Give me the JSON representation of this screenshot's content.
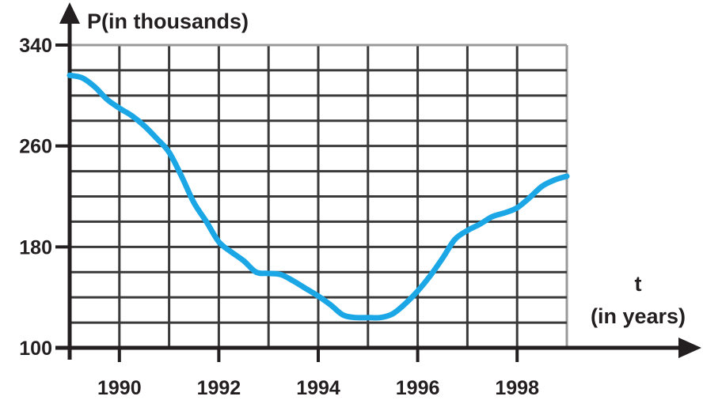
{
  "chart_data": {
    "type": "line",
    "title": "",
    "ylabel": "P(in thousands)",
    "xlabel_lines": [
      "t",
      "(in years)"
    ],
    "xlim": [
      1989,
      1999
    ],
    "ylim": [
      100,
      340
    ],
    "x_ticks": [
      1990,
      1992,
      1994,
      1996,
      1998
    ],
    "x_tick_labels": [
      "1990",
      "1992",
      "1994",
      "1996",
      "1998"
    ],
    "y_ticks": [
      100,
      180,
      260,
      340
    ],
    "y_tick_labels": [
      "100",
      "180",
      "260",
      "340"
    ],
    "grid": true,
    "grid_x_step": 1,
    "grid_y_step": 20,
    "line_color": "#1ba7e6",
    "grid_color": "#3a3a3a",
    "axis_color": "#231f20",
    "series": [
      {
        "name": "",
        "x": [
          1989,
          1989.25,
          1989.5,
          1989.75,
          1990,
          1990.25,
          1990.5,
          1990.75,
          1991,
          1991.25,
          1991.5,
          1991.75,
          1992,
          1992.25,
          1992.5,
          1992.75,
          1993,
          1993.25,
          1993.5,
          1993.75,
          1994,
          1994.25,
          1994.5,
          1994.75,
          1995,
          1995.25,
          1995.5,
          1995.75,
          1996,
          1996.25,
          1996.5,
          1996.75,
          1997,
          1997.25,
          1997.5,
          1997.75,
          1998,
          1998.25,
          1998.5,
          1998.75,
          1999
        ],
        "values": [
          316,
          314,
          307,
          297,
          290,
          284,
          276,
          266,
          255,
          236,
          215,
          200,
          184,
          176,
          169,
          160,
          159,
          158,
          153,
          147,
          141,
          134,
          126,
          124,
          124,
          124,
          127,
          135,
          145,
          157,
          171,
          186,
          193,
          198,
          204,
          207,
          211,
          219,
          228,
          233,
          236
        ]
      }
    ]
  }
}
